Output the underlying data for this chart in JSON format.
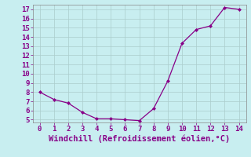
{
  "x": [
    0,
    1,
    2,
    3,
    4,
    5,
    6,
    7,
    8,
    9,
    10,
    11,
    12,
    13,
    14
  ],
  "y": [
    8.0,
    7.2,
    6.8,
    5.8,
    5.1,
    5.1,
    5.0,
    4.9,
    6.2,
    9.2,
    13.3,
    14.8,
    15.2,
    17.2,
    17.0
  ],
  "line_color": "#880088",
  "marker_color": "#880088",
  "bg_color": "#c8eef0",
  "grid_color": "#aacccc",
  "xlabel": "Windchill (Refroidissement éolien,°C)",
  "xlim_min": -0.5,
  "xlim_max": 14.5,
  "ylim_min": 4.7,
  "ylim_max": 17.5,
  "xticks": [
    0,
    1,
    2,
    3,
    4,
    5,
    6,
    7,
    8,
    9,
    10,
    11,
    12,
    13,
    14
  ],
  "yticks": [
    5,
    6,
    7,
    8,
    9,
    10,
    11,
    12,
    13,
    14,
    15,
    16,
    17
  ],
  "label_fontsize": 7.5,
  "tick_fontsize": 6.5
}
